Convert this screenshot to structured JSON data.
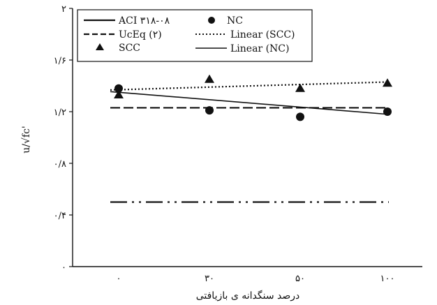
{
  "chart_data": {
    "type": "scatter",
    "categories": [
      "۰",
      "۳۰",
      "۵۰",
      "۱۰۰"
    ],
    "xlabel": "درصد سنگدانه ی بازیافتی",
    "ylabel": "u/√fc'",
    "ylim": [
      0,
      2
    ],
    "y_ticks": [
      {
        "value": 0,
        "label": "۰"
      },
      {
        "value": 0.4,
        "label": "۰/۴"
      },
      {
        "value": 0.8,
        "label": "۰/۸"
      },
      {
        "value": 1.2,
        "label": "۱/۲"
      },
      {
        "value": 1.6,
        "label": "۱/۶"
      },
      {
        "value": 2.0,
        "label": "۲"
      }
    ],
    "grid": false,
    "legend_position": "top",
    "series": [
      {
        "name": "NC",
        "kind": "points",
        "marker": "circle",
        "values": [
          1.38,
          1.21,
          1.16,
          1.2
        ]
      },
      {
        "name": "SCC",
        "kind": "points",
        "marker": "triangle",
        "values": [
          1.33,
          1.45,
          1.38,
          1.42
        ]
      },
      {
        "name": "ACI ۳۱۸-۰۸",
        "kind": "line",
        "style": "dash-dot-dot",
        "values": [
          0.5,
          0.5,
          0.5,
          0.5
        ]
      },
      {
        "name": "UcEq (۲)",
        "kind": "line",
        "style": "dashed",
        "values": [
          1.23,
          1.23,
          1.23,
          1.23
        ]
      },
      {
        "name": "Linear (SCC)",
        "kind": "line",
        "style": "dotted",
        "values": [
          1.37,
          1.39,
          1.41,
          1.43
        ]
      },
      {
        "name": "Linear (NC)",
        "kind": "line",
        "style": "solid",
        "values": [
          1.35,
          1.29,
          1.24,
          1.18
        ]
      }
    ]
  }
}
